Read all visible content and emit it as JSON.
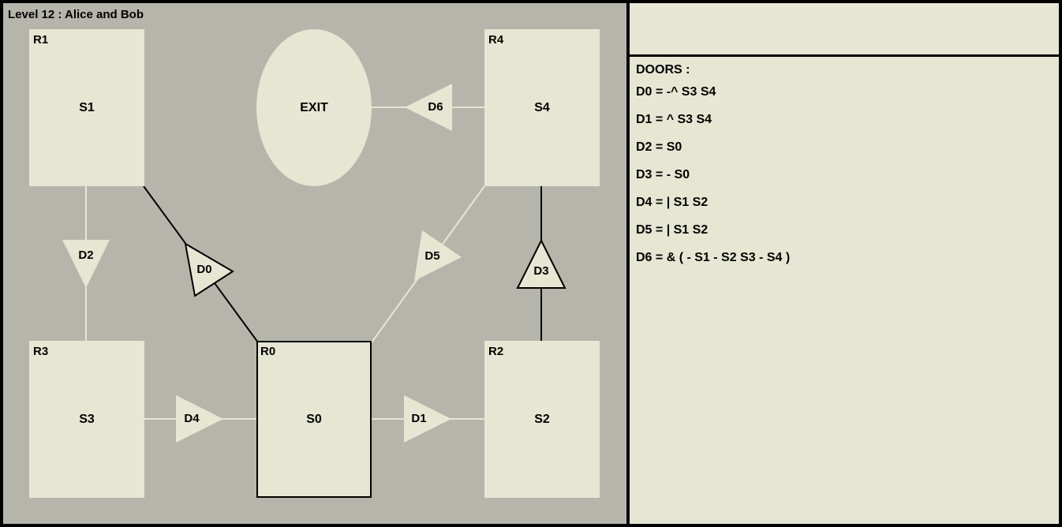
{
  "level": {
    "title": "Level 12 : Alice and Bob"
  },
  "colors": {
    "panel_bg": "#b5b5ac",
    "room_fill": "#e6e6d3",
    "outline": "#000000",
    "window_bg": "#000000"
  },
  "rooms": [
    {
      "id": "R1",
      "label": "R1",
      "switch": "S1",
      "current": false
    },
    {
      "id": "R4",
      "label": "R4",
      "switch": "S4",
      "current": false
    },
    {
      "id": "R3",
      "label": "R3",
      "switch": "S3",
      "current": false
    },
    {
      "id": "R0",
      "label": "R0",
      "switch": "S0",
      "current": true
    },
    {
      "id": "R2",
      "label": "R2",
      "switch": "S2",
      "current": false
    }
  ],
  "exit": {
    "label": "EXIT"
  },
  "doors": [
    {
      "id": "D0",
      "label": "D0",
      "from": "R0",
      "to": "R1",
      "open": false
    },
    {
      "id": "D1",
      "label": "D1",
      "from": "R0",
      "to": "R2",
      "open": true
    },
    {
      "id": "D2",
      "label": "D2",
      "from": "R1",
      "to": "R3",
      "open": true
    },
    {
      "id": "D3",
      "label": "D3",
      "from": "R2",
      "to": "R4",
      "open": false
    },
    {
      "id": "D4",
      "label": "D4",
      "from": "R3",
      "to": "R0",
      "open": true
    },
    {
      "id": "D5",
      "label": "D5",
      "from": "R0",
      "to": "R4",
      "open": true
    },
    {
      "id": "D6",
      "label": "D6",
      "from": "R4",
      "to": "EXIT",
      "open": true
    }
  ],
  "doors_panel": {
    "heading": "DOORS :",
    "rules": [
      "D0 = -^ S3 S4",
      "D1 = ^ S3 S4",
      "D2 = S0",
      "D3 = - S0",
      "D4 = | S1 S2",
      "D5 = | S1 S2",
      "D6 = & ( - S1 - S2 S3 - S4 )"
    ]
  }
}
